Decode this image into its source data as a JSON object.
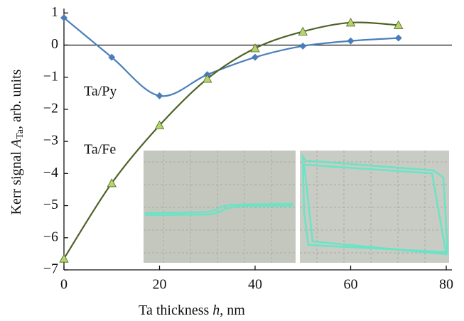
{
  "chart_data": {
    "type": "line",
    "xlabel_parts": [
      "Ta thickness ",
      "h",
      ", nm"
    ],
    "ylabel_parts": [
      "Kerr signal ",
      "A",
      "Ta",
      ", arb. units"
    ],
    "x": [
      0,
      10,
      20,
      30,
      40,
      50,
      60,
      70
    ],
    "series": [
      {
        "name": "Ta/Py",
        "color": "#4a7ebb",
        "marker": "diamond",
        "values": [
          0.85,
          -0.38,
          -1.58,
          -0.92,
          -0.38,
          -0.03,
          0.13,
          0.22
        ]
      },
      {
        "name": "Ta/Fe",
        "color": "#4f6228",
        "marker_color": "#b5d56a",
        "marker": "triangle",
        "values": [
          -6.65,
          -4.3,
          -2.5,
          -1.05,
          -0.1,
          0.42,
          0.7,
          0.62
        ]
      }
    ],
    "xlim": [
      0,
      80
    ],
    "xticks": [
      0,
      20,
      40,
      60,
      80
    ],
    "ylim": [
      -7,
      1.05
    ],
    "yticks": [
      1,
      0,
      {
        "value": -1,
        "label": "−1"
      },
      {
        "value": -2,
        "label": "−2"
      },
      {
        "value": -3,
        "label": "−3"
      },
      {
        "value": -4,
        "label": "−4"
      },
      {
        "value": -5,
        "label": "−5"
      },
      {
        "value": -6,
        "label": "−6"
      },
      {
        "value": -7,
        "label": "−7"
      }
    ]
  }
}
